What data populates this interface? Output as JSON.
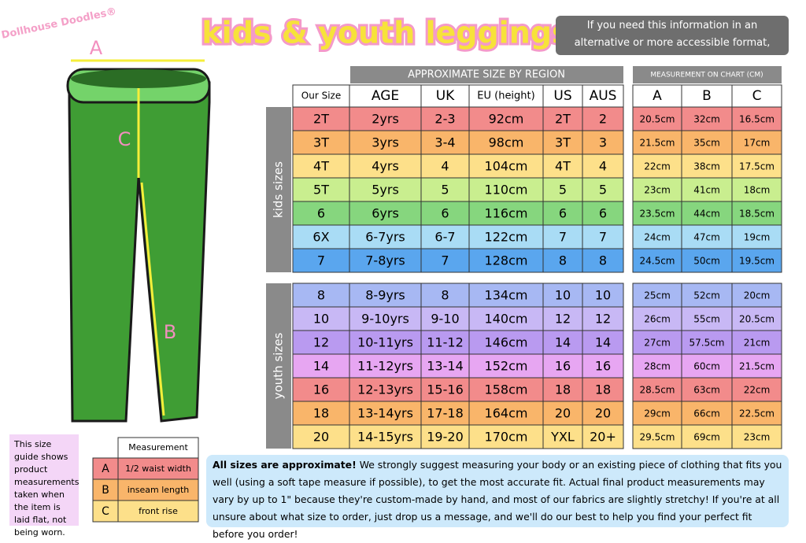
{
  "brand": "Dollhouse Doodles®",
  "title": "kids & youth leggings",
  "notice": "If you need this information in an alternative or more accessible format, please just ask!",
  "region_header": "APPROXIMATE SIZE BY REGION",
  "measure_header": "MEASUREMENT ON CHART (CM)",
  "columns": [
    "Our Size",
    "AGE",
    "UK",
    "EU (height)",
    "US",
    "AUS",
    "A",
    "B",
    "C"
  ],
  "groups": [
    {
      "label": "kids sizes",
      "rows": [
        [
          "2T",
          "2yrs",
          "2-3",
          "92cm",
          "2T",
          "2",
          "20.5cm",
          "32cm",
          "16.5cm"
        ],
        [
          "3T",
          "3yrs",
          "3-4",
          "98cm",
          "3T",
          "3",
          "21.5cm",
          "35cm",
          "17cm"
        ],
        [
          "4T",
          "4yrs",
          "4",
          "104cm",
          "4T",
          "4",
          "22cm",
          "38cm",
          "17.5cm"
        ],
        [
          "5T",
          "5yrs",
          "5",
          "110cm",
          "5",
          "5",
          "23cm",
          "41cm",
          "18cm"
        ],
        [
          "6",
          "6yrs",
          "6",
          "116cm",
          "6",
          "6",
          "23.5cm",
          "44cm",
          "18.5cm"
        ],
        [
          "6X",
          "6-7yrs",
          "6-7",
          "122cm",
          "7",
          "7",
          "24cm",
          "47cm",
          "19cm"
        ],
        [
          "7",
          "7-8yrs",
          "7",
          "128cm",
          "8",
          "8",
          "24.5cm",
          "50cm",
          "19.5cm"
        ]
      ]
    },
    {
      "label": "youth sizes",
      "rows": [
        [
          "8",
          "8-9yrs",
          "8",
          "134cm",
          "10",
          "10",
          "25cm",
          "52cm",
          "20cm"
        ],
        [
          "10",
          "9-10yrs",
          "9-10",
          "140cm",
          "12",
          "12",
          "26cm",
          "55cm",
          "20.5cm"
        ],
        [
          "12",
          "10-11yrs",
          "11-12",
          "146cm",
          "14",
          "14",
          "27cm",
          "57.5cm",
          "21cm"
        ],
        [
          "14",
          "11-12yrs",
          "13-14",
          "152cm",
          "16",
          "16",
          "28cm",
          "60cm",
          "21.5cm"
        ],
        [
          "16",
          "12-13yrs",
          "15-16",
          "158cm",
          "18",
          "18",
          "28.5cm",
          "63cm",
          "22cm"
        ],
        [
          "18",
          "13-14yrs",
          "17-18",
          "164cm",
          "20",
          "20",
          "29cm",
          "66cm",
          "22.5cm"
        ],
        [
          "20",
          "14-15yrs",
          "19-20",
          "170cm",
          "YXL",
          "20+",
          "29.5cm",
          "69cm",
          "23cm"
        ]
      ]
    }
  ],
  "diagram_labels": [
    "A",
    "B",
    "C"
  ],
  "key": {
    "header": "Measurement",
    "rows": [
      [
        "A",
        "1/2 waist width"
      ],
      [
        "B",
        "inseam length"
      ],
      [
        "C",
        "front rise"
      ]
    ]
  },
  "side_note": "This size guide shows product measurements taken when the item is laid flat, not being worn.",
  "footer": {
    "lead": "All sizes are approximate!",
    "body": "We strongly suggest measuring your body or an existing piece of clothing that fits you well (using a soft tape measure if possible), to get the most accurate fit. Actual final product measurements may vary by up to 1\" because they're custom-made by hand, and most of our fabrics are slightly stretchy! If you're at all unsure about what size to order, just drop us a message, and we'll do our best to help you find your perfect fit before you order!"
  }
}
